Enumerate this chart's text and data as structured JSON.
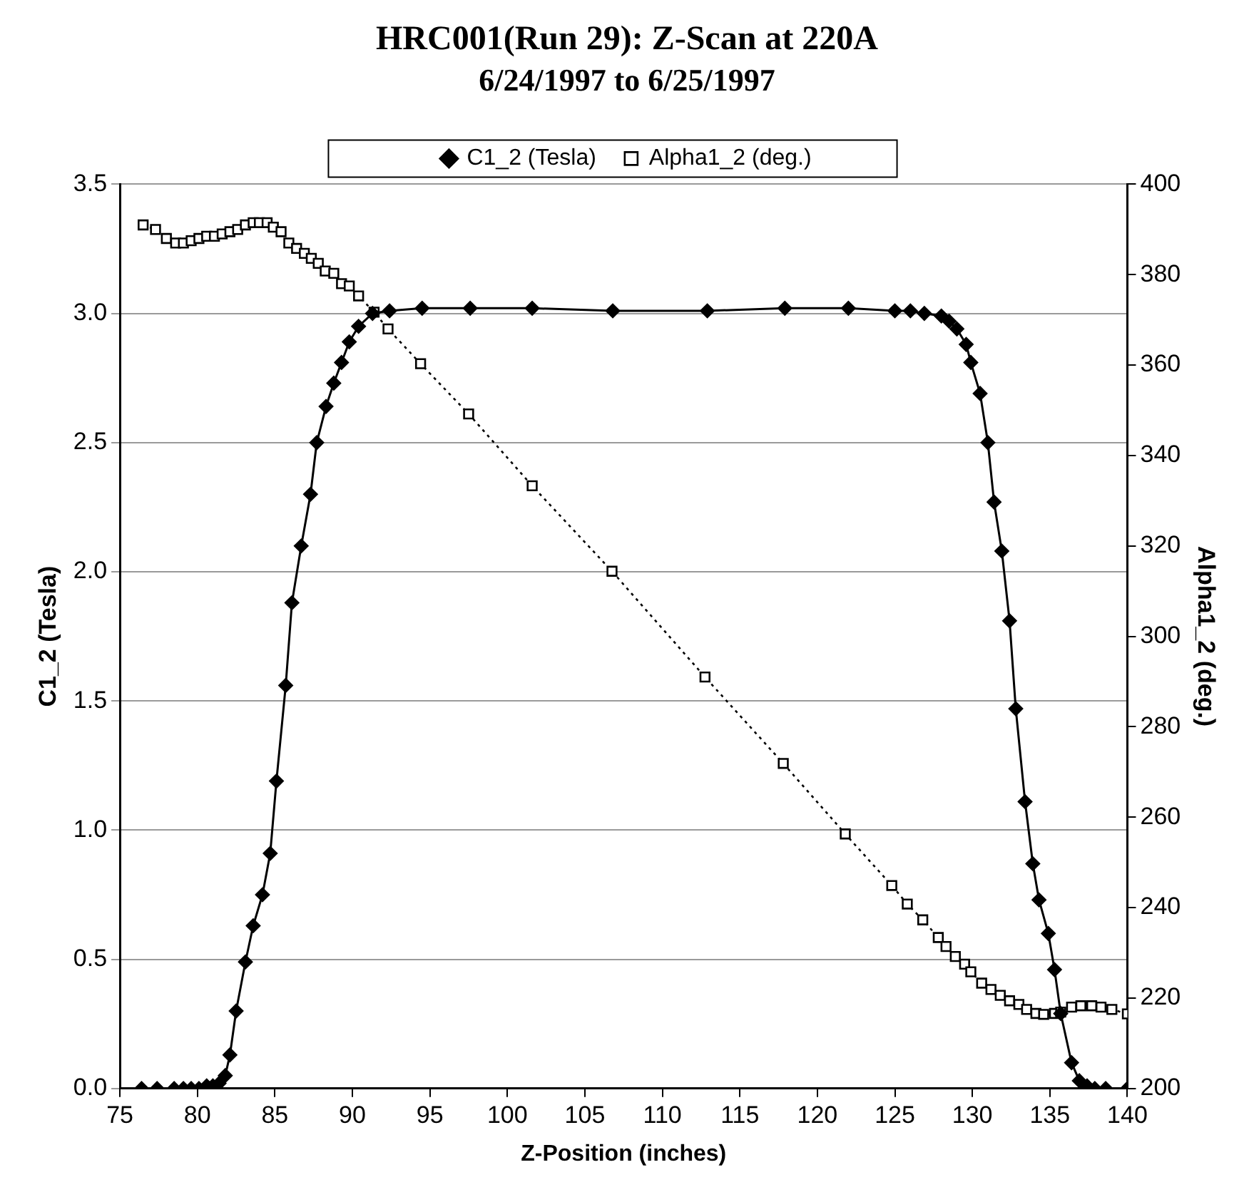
{
  "chart_data": {
    "type": "line",
    "title": "HRC001(Run 29): Z-Scan at 220A",
    "subtitle": "6/24/1997 to 6/25/1997",
    "xlabel": "Z-Position (inches)",
    "ylabel": "C1_2 (Tesla)",
    "y2label": "Alpha1_2 (deg.)",
    "xlim": [
      75,
      140
    ],
    "xticks": [
      75,
      80,
      85,
      90,
      95,
      100,
      105,
      110,
      115,
      120,
      125,
      130,
      135,
      140
    ],
    "ylim": [
      0,
      3.5
    ],
    "yticks": [
      {
        "value": 0,
        "label": "0.0"
      },
      {
        "value": 0.5,
        "label": "0.5"
      },
      {
        "value": 1,
        "label": "1.0"
      },
      {
        "value": 1.5,
        "label": "1.5"
      },
      {
        "value": 2,
        "label": "2.0"
      },
      {
        "value": 2.5,
        "label": "2.5"
      },
      {
        "value": 3,
        "label": "3.0"
      },
      {
        "value": 3.5,
        "label": "3.5"
      }
    ],
    "y2lim": [
      200,
      400
    ],
    "y2ticks": [
      200,
      220,
      240,
      260,
      280,
      300,
      320,
      340,
      360,
      380,
      400
    ],
    "grid": "y",
    "legend": "top",
    "series": [
      {
        "name": "C1_2 (Tesla)",
        "color": "#000000",
        "marker": "diamond",
        "line_style": "solid",
        "x": [
          76.4,
          77.4,
          78.5,
          79.1,
          79.6,
          80.1,
          80.6,
          81.0,
          81.4,
          81.8,
          82.1,
          82.5,
          83.1,
          83.6,
          84.2,
          84.7,
          85.1,
          85.7,
          86.1,
          86.7,
          87.3,
          87.7,
          88.3,
          88.8,
          89.3,
          89.8,
          90.4,
          91.3,
          92.4,
          94.5,
          97.6,
          101.6,
          106.8,
          112.9,
          117.9,
          122.0,
          125.0,
          126.0,
          126.9,
          128.0,
          128.5,
          129.0,
          129.6,
          129.9,
          130.5,
          131.0,
          131.4,
          131.9,
          132.4,
          132.8,
          133.4,
          133.9,
          134.3,
          134.9,
          135.3,
          135.7,
          136.4,
          136.9,
          137.4,
          137.9,
          138.6,
          140.0
        ],
        "values": [
          0,
          0,
          0,
          0,
          0,
          0,
          0.01,
          0.01,
          0.02,
          0.05,
          0.13,
          0.3,
          0.49,
          0.63,
          0.75,
          0.91,
          1.19,
          1.56,
          1.88,
          2.1,
          2.3,
          2.5,
          2.64,
          2.73,
          2.81,
          2.89,
          2.95,
          3.0,
          3.01,
          3.02,
          3.02,
          3.02,
          3.01,
          3.01,
          3.02,
          3.02,
          3.01,
          3.01,
          3.0,
          2.99,
          2.97,
          2.94,
          2.88,
          2.81,
          2.69,
          2.5,
          2.27,
          2.08,
          1.81,
          1.47,
          1.11,
          0.87,
          0.73,
          0.6,
          0.46,
          0.29,
          0.1,
          0.03,
          0.01,
          0,
          0,
          0
        ]
      },
      {
        "name": "Alpha1_2 (deg.)",
        "color": "#000000",
        "axis": "y2",
        "marker": "square",
        "line_style": "dotted",
        "x": [
          76.5,
          77.3,
          78.0,
          78.6,
          79.1,
          79.6,
          80.1,
          80.6,
          81.1,
          81.6,
          82.1,
          82.6,
          83.1,
          83.6,
          84.0,
          84.5,
          84.9,
          85.4,
          85.9,
          86.4,
          86.9,
          87.35,
          87.8,
          88.25,
          88.8,
          89.3,
          89.8,
          90.4,
          91.4,
          92.3,
          94.4,
          97.5,
          101.6,
          106.75,
          112.75,
          117.8,
          121.8,
          124.8,
          125.8,
          126.8,
          127.8,
          128.3,
          128.9,
          129.5,
          129.9,
          130.6,
          131.2,
          131.8,
          132.4,
          133.0,
          133.5,
          134.1,
          134.6,
          135.3,
          135.7,
          136.4,
          137.0,
          137.7,
          138.3,
          139.0,
          140.0
        ],
        "values": [
          391,
          390,
          388,
          387,
          387,
          387.5,
          388,
          388.5,
          388.5,
          389,
          389.5,
          390,
          391,
          391.5,
          391.5,
          391.5,
          390.5,
          389.5,
          387,
          385.8,
          384.7,
          383.6,
          382.5,
          380.8,
          380.3,
          378,
          377.5,
          375.3,
          371.7,
          368,
          360.3,
          349.2,
          333.3,
          314.4,
          291,
          271.9,
          256.3,
          244.9,
          240.8,
          237.3,
          233.4,
          231.4,
          229.2,
          227.5,
          225.8,
          223.3,
          221.9,
          220.6,
          219.4,
          218.6,
          217.5,
          216.6,
          216.4,
          216.6,
          216.9,
          218,
          218.3,
          218.3,
          218,
          217.5,
          216.5
        ]
      }
    ]
  }
}
